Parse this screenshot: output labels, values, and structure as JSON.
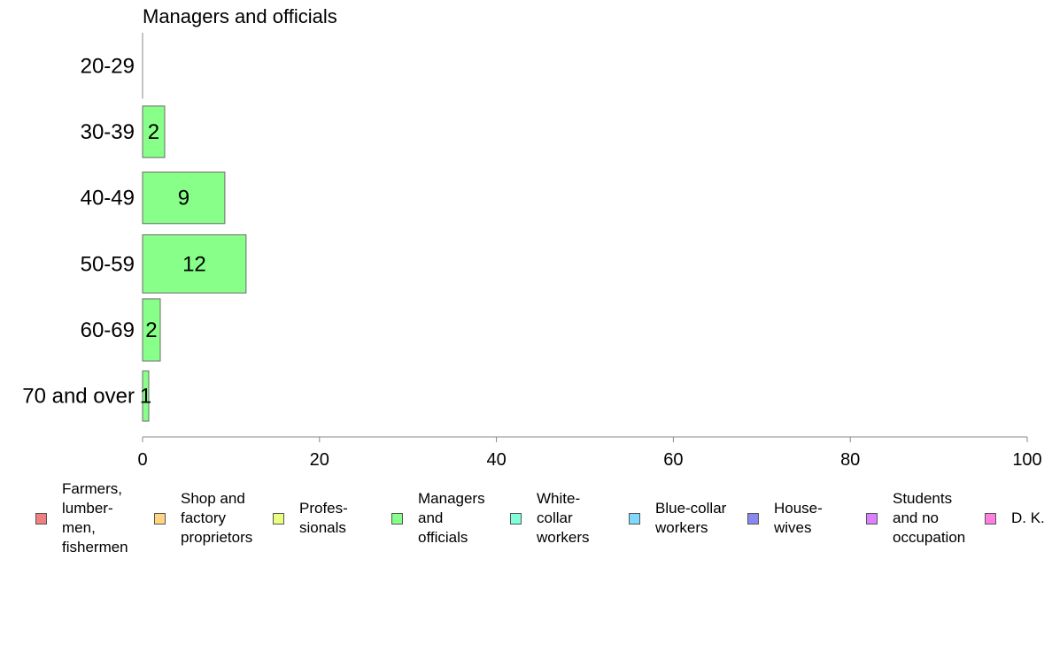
{
  "chart_data": {
    "type": "bar",
    "orientation": "horizontal",
    "title": "Managers and officials",
    "categories": [
      "20-29",
      "30-39",
      "40-49",
      "50-59",
      "60-69",
      "70 and over"
    ],
    "series": [
      {
        "name": "Managers and officials",
        "values": [
          0,
          2.5,
          9.3,
          11.7,
          2.0,
          0.7
        ],
        "labels": [
          "",
          "2",
          "9",
          "12",
          "2",
          "1"
        ],
        "color": "#88ff88"
      }
    ],
    "relative_widths": [
      0.05,
      0.78,
      0.78,
      0.88,
      0.94,
      0.76
    ],
    "xlim": [
      0,
      100
    ],
    "xticks": [
      "0",
      "20",
      "40",
      "60",
      "80",
      "100"
    ],
    "grid": false,
    "legend_position": "bottom"
  },
  "legend": [
    {
      "label": "Farmers,\nlumber-\nmen,\nfishermen",
      "color": "#f08080"
    },
    {
      "label": "Shop and\nfactory\nproprietors",
      "color": "#ffd580"
    },
    {
      "label": "Profes-\nsionals",
      "color": "#e8ff80"
    },
    {
      "label": "Managers\nand\nofficials",
      "color": "#88ff88"
    },
    {
      "label": "White-\ncollar\nworkers",
      "color": "#80ffd8"
    },
    {
      "label": "Blue-collar\nworkers",
      "color": "#80d8ff"
    },
    {
      "label": "House-\nwives",
      "color": "#8888f0"
    },
    {
      "label": "Students\nand no\noccupation",
      "color": "#dd80ff"
    },
    {
      "label": "D. K.",
      "color": "#ff80e0"
    }
  ]
}
